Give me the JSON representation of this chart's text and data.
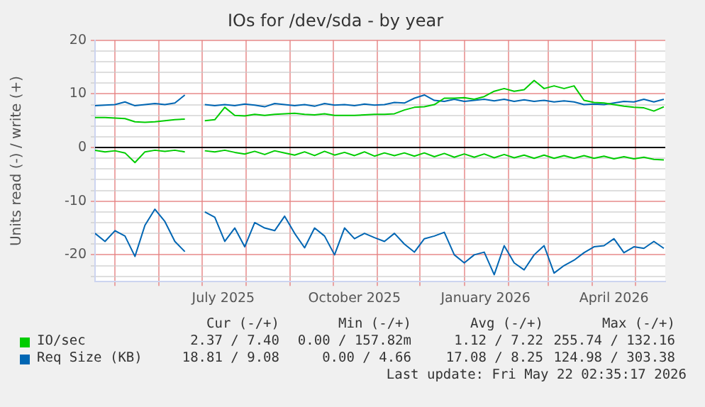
{
  "chart_data": {
    "type": "line",
    "title": "IOs for /dev/sda - by year",
    "ylabel": "Units read (-) / write (+)",
    "x": [
      "2025-04-17",
      "2025-04-24",
      "2025-05-01",
      "2025-05-08",
      "2025-05-15",
      "2025-05-22",
      "2025-05-29",
      "2025-06-05",
      "2025-06-12",
      "2025-06-19",
      "2025-06-26",
      "2025-07-03",
      "2025-07-10",
      "2025-07-17",
      "2025-07-24",
      "2025-07-31",
      "2025-08-07",
      "2025-08-14",
      "2025-08-21",
      "2025-08-28",
      "2025-09-04",
      "2025-09-11",
      "2025-09-18",
      "2025-09-25",
      "2025-10-02",
      "2025-10-09",
      "2025-10-16",
      "2025-10-23",
      "2025-10-30",
      "2025-11-06",
      "2025-11-13",
      "2025-11-20",
      "2025-11-27",
      "2025-12-04",
      "2025-12-11",
      "2025-12-18",
      "2025-12-25",
      "2026-01-01",
      "2026-01-08",
      "2026-01-15",
      "2026-01-22",
      "2026-01-29",
      "2026-02-05",
      "2026-02-12",
      "2026-02-19",
      "2026-02-26",
      "2026-03-05",
      "2026-03-12",
      "2026-03-19",
      "2026-03-26",
      "2026-04-02",
      "2026-04-09",
      "2026-04-16",
      "2026-04-23",
      "2026-04-30",
      "2026-05-07",
      "2026-05-14",
      "2026-05-21"
    ],
    "series": [
      {
        "name": "IO/sec",
        "color": "#00cc00",
        "values": [
          5.6,
          5.6,
          5.5,
          5.4,
          4.8,
          4.7,
          4.8,
          5.0,
          5.2,
          5.3,
          null,
          5.0,
          5.2,
          7.5,
          6.0,
          5.9,
          6.2,
          6.0,
          6.2,
          6.3,
          6.4,
          6.2,
          6.1,
          6.3,
          6.0,
          6.0,
          6.0,
          6.1,
          6.2,
          6.2,
          6.3,
          7.0,
          7.5,
          7.6,
          8.0,
          9.2,
          9.2,
          9.3,
          9.0,
          9.5,
          10.5,
          11.0,
          10.5,
          10.8,
          12.5,
          11.0,
          11.5,
          11.0,
          11.5,
          8.8,
          8.4,
          8.3,
          8.0,
          7.7,
          7.5,
          7.4,
          6.8,
          7.6
        ]
      },
      {
        "color": "#00cc00",
        "values": [
          -0.5,
          -0.8,
          -0.6,
          -1.0,
          -2.8,
          -0.8,
          -0.5,
          -0.7,
          -0.5,
          -0.8,
          null,
          -0.6,
          -0.8,
          -0.5,
          -0.9,
          -1.2,
          -0.7,
          -1.3,
          -0.6,
          -1.0,
          -1.4,
          -0.8,
          -1.5,
          -0.7,
          -1.4,
          -0.9,
          -1.5,
          -0.8,
          -1.6,
          -1.0,
          -1.5,
          -1.0,
          -1.6,
          -1.0,
          -1.7,
          -1.1,
          -1.8,
          -1.2,
          -1.8,
          -1.2,
          -1.9,
          -1.3,
          -1.9,
          -1.4,
          -2.0,
          -1.4,
          -2.0,
          -1.5,
          -2.0,
          -1.5,
          -2.0,
          -1.6,
          -2.1,
          -1.7,
          -2.1,
          -1.8,
          -2.2,
          -2.3
        ]
      },
      {
        "name": "Req Size (KB)",
        "color": "#0066b3",
        "values": [
          7.8,
          7.9,
          8.0,
          8.5,
          7.8,
          8.0,
          8.2,
          8.0,
          8.3,
          9.8,
          null,
          8.0,
          7.8,
          8.0,
          7.8,
          8.1,
          7.9,
          7.6,
          8.2,
          8.0,
          7.8,
          8.0,
          7.7,
          8.2,
          7.9,
          8.0,
          7.8,
          8.1,
          7.9,
          8.0,
          8.4,
          8.3,
          9.2,
          9.8,
          8.8,
          8.6,
          9.0,
          8.6,
          8.8,
          9.0,
          8.7,
          9.0,
          8.6,
          8.9,
          8.6,
          8.8,
          8.5,
          8.7,
          8.5,
          8.0,
          8.1,
          8.0,
          8.3,
          8.6,
          8.5,
          9.0,
          8.5,
          9.0
        ]
      },
      {
        "color": "#0066b3",
        "values": [
          -16,
          -17.5,
          -15.5,
          -16.5,
          -20.3,
          -14.5,
          -11.5,
          -13.8,
          -17.5,
          -19.4,
          null,
          -12,
          -13,
          -17.5,
          -15,
          -18.5,
          -14,
          -15,
          -15.5,
          -12.8,
          -16,
          -18.7,
          -15,
          -16.5,
          -20,
          -15,
          -17,
          -16,
          -16.8,
          -17.5,
          -16,
          -18,
          -19.5,
          -17,
          -16.5,
          -15.8,
          -20,
          -21.5,
          -20,
          -19.5,
          -23.7,
          -18.3,
          -21.5,
          -22.8,
          -20,
          -18.3,
          -23.4,
          -22,
          -21,
          -19.6,
          -18.5,
          -18.3,
          -17,
          -19.6,
          -18.5,
          -18.8,
          -17.5,
          -18.8
        ]
      }
    ],
    "xlim": [
      "2025-04-17",
      "2026-05-22"
    ],
    "xticks": [
      {
        "value": "2025-05-01",
        "label": null
      },
      {
        "value": "2025-06-01",
        "label": null
      },
      {
        "value": "2025-07-01",
        "label": null
      },
      {
        "value": "2025-07-16",
        "label": "July 2025"
      },
      {
        "value": "2025-08-01",
        "label": null
      },
      {
        "value": "2025-09-01",
        "label": null
      },
      {
        "value": "2025-10-01",
        "label": null
      },
      {
        "value": "2025-10-16",
        "label": "October 2025"
      },
      {
        "value": "2025-11-01",
        "label": null
      },
      {
        "value": "2025-12-01",
        "label": null
      },
      {
        "value": "2026-01-01",
        "label": null
      },
      {
        "value": "2026-01-16",
        "label": "January 2026"
      },
      {
        "value": "2026-02-01",
        "label": null
      },
      {
        "value": "2026-03-01",
        "label": null
      },
      {
        "value": "2026-04-01",
        "label": null
      },
      {
        "value": "2026-04-16",
        "label": "April 2026"
      },
      {
        "value": "2026-05-01",
        "label": null
      }
    ],
    "ylim": [
      -25,
      20
    ],
    "yticks": [
      {
        "value": -24,
        "label": null
      },
      {
        "value": -22,
        "label": null
      },
      -20,
      {
        "value": -18,
        "label": null
      },
      {
        "value": -16,
        "label": null
      },
      {
        "value": -14,
        "label": null
      },
      {
        "value": -12,
        "label": null
      },
      -10,
      {
        "value": -8,
        "label": null
      },
      {
        "value": -6,
        "label": null
      },
      {
        "value": -4,
        "label": null
      },
      {
        "value": -2,
        "label": null
      },
      0,
      {
        "value": 2,
        "label": null
      },
      {
        "value": 4,
        "label": null
      },
      {
        "value": 6,
        "label": null
      },
      {
        "value": 8,
        "label": null
      },
      10,
      {
        "value": 12,
        "label": null
      },
      {
        "value": 14,
        "label": null
      },
      {
        "value": 16,
        "label": null
      },
      {
        "value": 18,
        "label": null
      },
      20
    ],
    "ref_lines": [
      {
        "axis": "y",
        "value": 0,
        "color": "#000000"
      }
    ],
    "grid": true,
    "legend": "bottom left",
    "marker": "none",
    "line_style": "solid",
    "annotations": [
      "Cur (-/+)",
      "Min (-/+)",
      "Avg (-/+)",
      "Max (-/+)",
      "2.37 / 7.40",
      "0.00 / 157.82m",
      "1.12 / 7.22",
      "255.74 / 132.16",
      "18.81 / 9.08",
      "0.00 / 4.66",
      "17.08 / 8.25",
      "124.98 / 303.38",
      "Last update: Fri May 22 02:35:17 2026"
    ]
  }
}
